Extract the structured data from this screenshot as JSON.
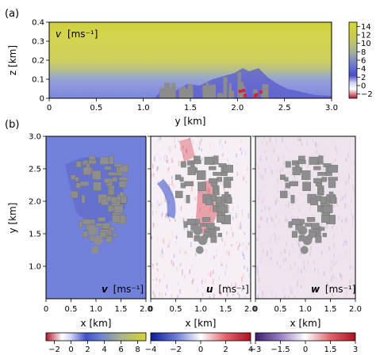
{
  "panel_a": {
    "letter": "(a)",
    "field_symbol": "v",
    "field_unit": "[ms⁻¹]",
    "xlabel": "y [km]",
    "ylabel": "z [km]",
    "x_ticks": [
      "0",
      "0.5",
      "1.0",
      "1.5",
      "2.0",
      "2.5",
      "3.0"
    ],
    "y_ticks": [
      "0",
      "0.1",
      "0.2",
      "0.3",
      "0.4"
    ],
    "colorbar_ticks": [
      "14",
      "12",
      "10",
      "8",
      "6",
      "4",
      "2",
      "0",
      "−2"
    ]
  },
  "panel_b": {
    "letter": "(b)",
    "xlabel": "x [km]",
    "ylabel": "y [km]",
    "x_ticks": [
      "0",
      "0.5",
      "1.0",
      "1.5",
      "2.0"
    ],
    "y_ticks": [
      "1.0",
      "1.5",
      "2.0",
      "2.5",
      "3.0"
    ],
    "maps": [
      {
        "symbol": "v",
        "unit": "[ms⁻¹]",
        "cb_ticks": [
          "−2",
          "0",
          "2",
          "4",
          "6",
          "8"
        ]
      },
      {
        "symbol": "u",
        "unit": "[ms⁻¹]",
        "cb_ticks": [
          "−4",
          "−2",
          "0",
          "2",
          "4"
        ]
      },
      {
        "symbol": "w",
        "unit": "[ms⁻¹]",
        "cb_ticks": [
          "−3",
          "−1.5",
          "0",
          "1.5",
          "3"
        ]
      }
    ]
  },
  "chart_data": [
    {
      "type": "heatmap",
      "panel": "(a)",
      "variable": "v",
      "unit": "ms⁻¹",
      "xlabel": "y [km]",
      "ylabel": "z [km]",
      "xlim": [
        0,
        3.0
      ],
      "ylim": [
        0,
        0.4
      ],
      "color_range": [
        -3,
        15
      ],
      "colorbar_ticks": [
        -2,
        0,
        2,
        4,
        6,
        8,
        10,
        12,
        14
      ]
    },
    {
      "type": "heatmap",
      "panel": "(b)",
      "variable": "v",
      "unit": "ms⁻¹",
      "xlabel": "x [km]",
      "ylabel": "y [km]",
      "xlim": [
        0,
        2.0
      ],
      "ylim": [
        0.5,
        3.0
      ],
      "color_range": [
        -3,
        9
      ],
      "colorbar_ticks": [
        -2,
        0,
        2,
        4,
        6,
        8
      ]
    },
    {
      "type": "heatmap",
      "panel": "(b)",
      "variable": "u",
      "unit": "ms⁻¹",
      "xlabel": "x [km]",
      "xlim": [
        0,
        2.0
      ],
      "ylim": [
        0.5,
        3.0
      ],
      "color_range": [
        -4,
        4
      ],
      "colorbar_ticks": [
        -4,
        -2,
        0,
        2,
        4
      ]
    },
    {
      "type": "heatmap",
      "panel": "(b)",
      "variable": "w",
      "unit": "ms⁻¹",
      "xlabel": "x [km]",
      "xlim": [
        0,
        2.0
      ],
      "ylim": [
        0.5,
        3.0
      ],
      "color_range": [
        -3,
        3
      ],
      "colorbar_ticks": [
        -3,
        -1.5,
        0,
        1.5,
        3
      ]
    }
  ]
}
